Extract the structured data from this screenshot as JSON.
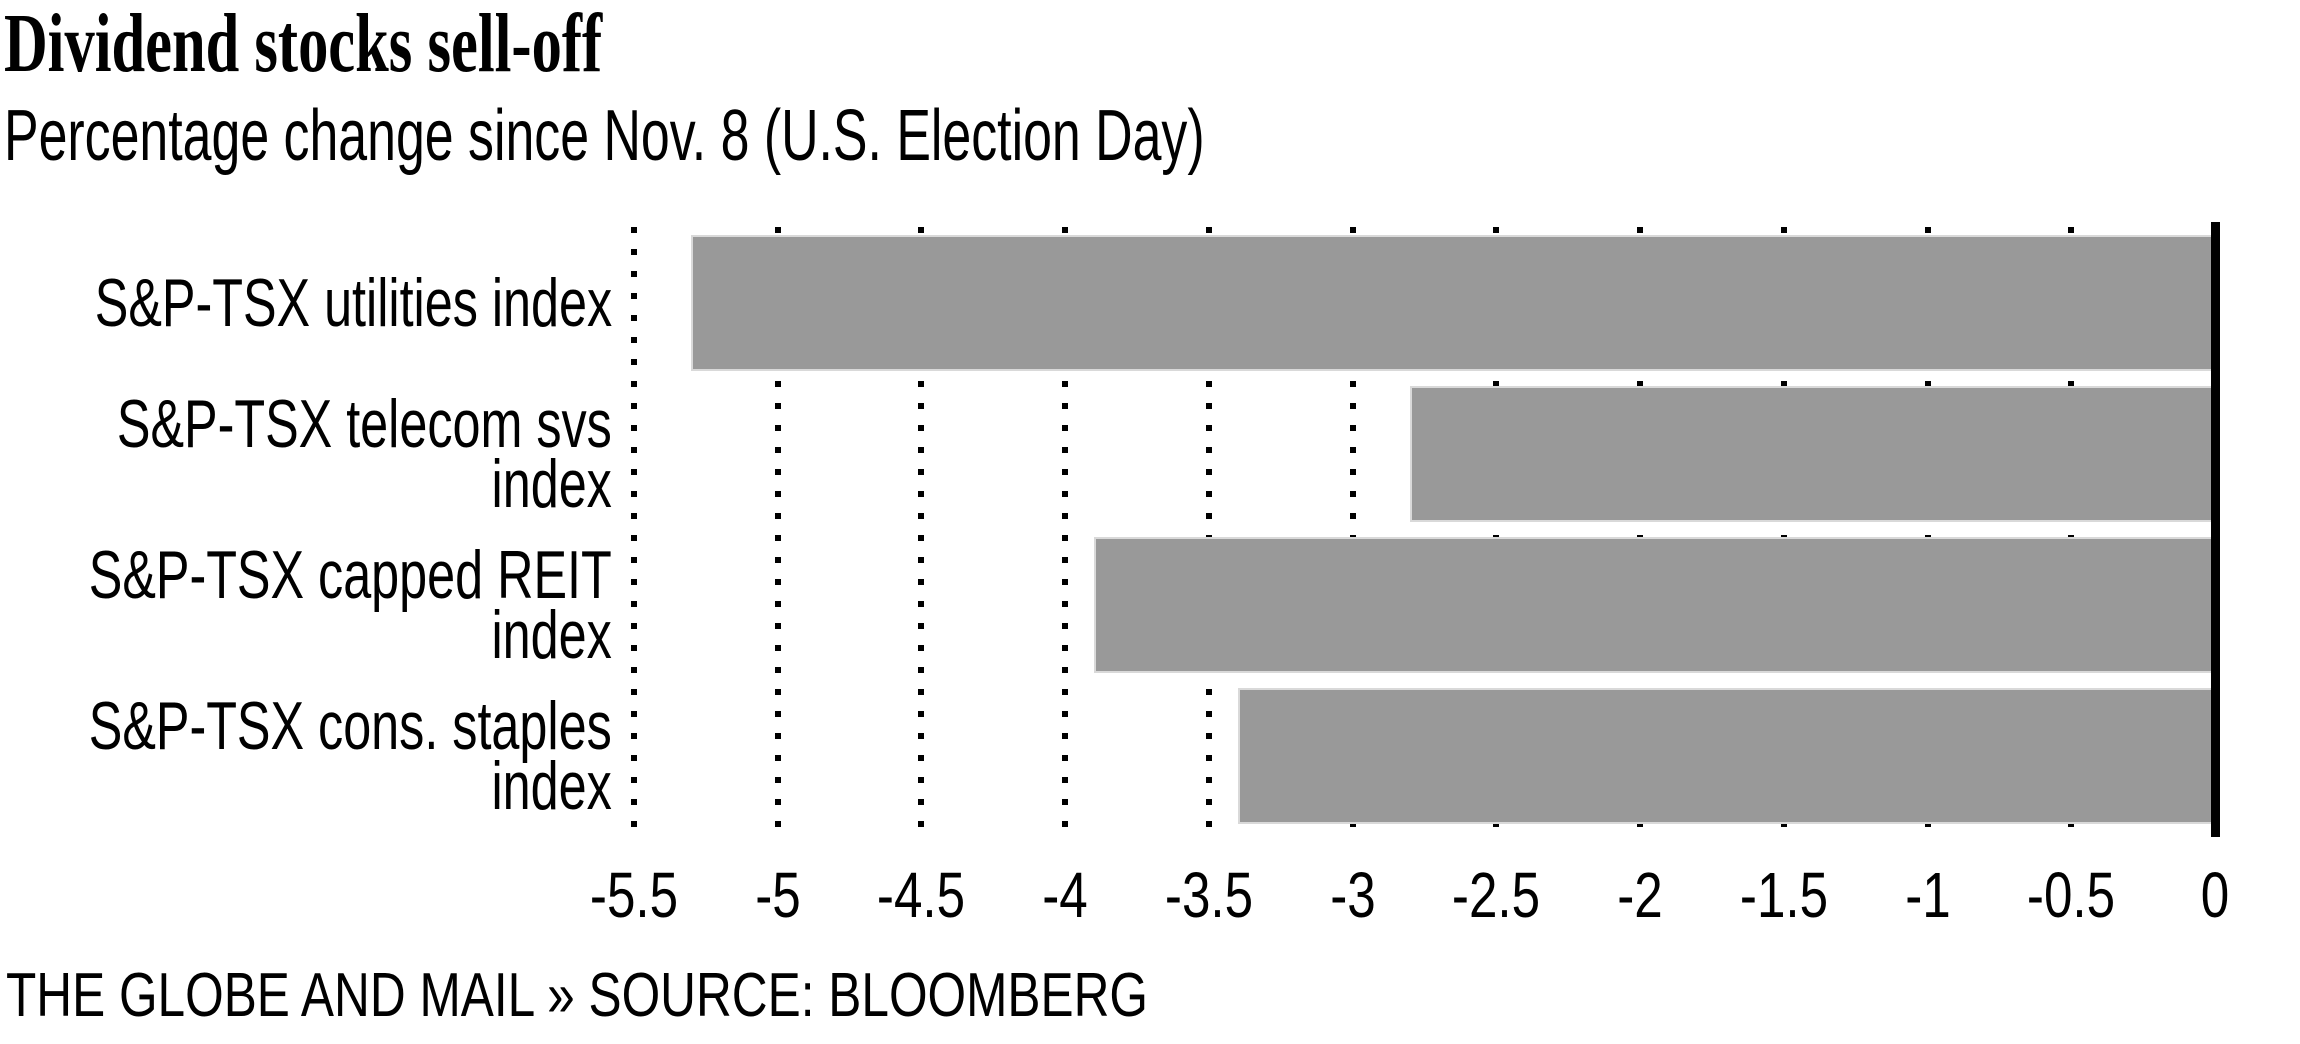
{
  "title": "Dividend stocks sell-off",
  "subtitle": "Percentage change since Nov. 8 (U.S. Election Day)",
  "footer": "THE GLOBE AND MAIL » SOURCE: BLOOMBERG",
  "colors": {
    "bar": "#999999",
    "bar_border": "#d9d9d9",
    "axis": "#000000",
    "gridline": "#000000",
    "text": "#000000",
    "background": "#ffffff"
  },
  "chart_data": {
    "type": "bar",
    "orientation": "horizontal",
    "title": "Dividend stocks sell-off",
    "subtitle": "Percentage change since Nov. 8 (U.S. Election Day)",
    "xlabel": "",
    "ylabel": "",
    "categories": [
      "S&P-TSX utilities index",
      "S&P-TSX telecom svs index",
      "S&P-TSX capped REIT index",
      "S&P-TSX cons. staples index"
    ],
    "category_label_lines": [
      [
        "S&P-TSX utilities index"
      ],
      [
        "S&P-TSX telecom svs",
        "index"
      ],
      [
        "S&P-TSX capped REIT",
        "index"
      ],
      [
        "S&P-TSX cons. staples",
        "index"
      ]
    ],
    "values": [
      -5.3,
      -2.8,
      -3.9,
      -3.4
    ],
    "xlim": [
      -5.5,
      0
    ],
    "baseline": 0,
    "x_ticks": [
      -5.5,
      -5,
      -4.5,
      -4,
      -3.5,
      -3,
      -2.5,
      -2,
      -1.5,
      -1,
      -0.5,
      0
    ],
    "x_tick_labels": [
      "-5.5",
      "-5",
      "-4.5",
      "-4",
      "-3.5",
      "-3",
      "-2.5",
      "-2",
      "-1.5",
      "-1",
      "-0.5",
      "0"
    ],
    "grid": "dotted-vertical",
    "legend": "none"
  }
}
